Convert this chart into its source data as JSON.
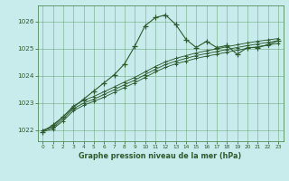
{
  "title": "Graphe pression niveau de la mer (hPa)",
  "bg_color": "#c8ecec",
  "grid_color": "#3d7a3d",
  "line_color": "#2d5a2d",
  "xlim": [
    -0.5,
    23.5
  ],
  "ylim": [
    1021.6,
    1026.6
  ],
  "yticks": [
    1022,
    1023,
    1024,
    1025,
    1026
  ],
  "xticks": [
    0,
    1,
    2,
    3,
    4,
    5,
    6,
    7,
    8,
    9,
    10,
    11,
    12,
    13,
    14,
    15,
    16,
    17,
    18,
    19,
    20,
    21,
    22,
    23
  ],
  "series1_x": [
    0,
    1,
    2,
    3,
    4,
    5,
    6,
    7,
    8,
    9,
    10,
    11,
    12,
    13,
    14,
    15,
    16,
    17,
    18,
    19,
    20,
    21,
    22,
    23
  ],
  "series1_y": [
    1021.95,
    1022.2,
    1022.5,
    1022.85,
    1023.15,
    1023.45,
    1023.75,
    1024.05,
    1024.45,
    1025.1,
    1025.85,
    1026.15,
    1026.25,
    1025.9,
    1025.35,
    1025.05,
    1025.28,
    1025.05,
    1025.12,
    1024.8,
    1025.05,
    1025.05,
    1025.15,
    1025.3
  ],
  "series2_x": [
    0,
    1,
    2,
    3,
    4,
    5,
    6,
    7,
    8,
    9,
    10,
    11,
    12,
    13,
    14,
    15,
    16,
    17,
    18,
    19,
    20,
    21,
    22,
    23
  ],
  "series2_y": [
    1022.0,
    1022.15,
    1022.5,
    1022.9,
    1023.1,
    1023.25,
    1023.42,
    1023.6,
    1023.78,
    1023.95,
    1024.15,
    1024.35,
    1024.52,
    1024.65,
    1024.75,
    1024.85,
    1024.93,
    1025.0,
    1025.08,
    1025.15,
    1025.22,
    1025.28,
    1025.33,
    1025.38
  ],
  "series3_x": [
    0,
    1,
    2,
    3,
    4,
    5,
    6,
    7,
    8,
    9,
    10,
    11,
    12,
    13,
    14,
    15,
    16,
    17,
    18,
    19,
    20,
    21,
    22,
    23
  ],
  "series3_y": [
    1022.0,
    1022.1,
    1022.42,
    1022.8,
    1023.0,
    1023.15,
    1023.32,
    1023.5,
    1023.68,
    1023.85,
    1024.05,
    1024.25,
    1024.42,
    1024.55,
    1024.65,
    1024.75,
    1024.83,
    1024.9,
    1024.98,
    1025.05,
    1025.12,
    1025.18,
    1025.24,
    1025.3
  ],
  "series4_x": [
    0,
    1,
    2,
    3,
    4,
    5,
    6,
    7,
    8,
    9,
    10,
    11,
    12,
    13,
    14,
    15,
    16,
    17,
    18,
    19,
    20,
    21,
    22,
    23
  ],
  "series4_y": [
    1021.95,
    1022.05,
    1022.35,
    1022.72,
    1022.92,
    1023.07,
    1023.22,
    1023.4,
    1023.58,
    1023.75,
    1023.95,
    1024.15,
    1024.32,
    1024.45,
    1024.55,
    1024.65,
    1024.73,
    1024.8,
    1024.88,
    1024.95,
    1025.02,
    1025.08,
    1025.14,
    1025.2
  ]
}
